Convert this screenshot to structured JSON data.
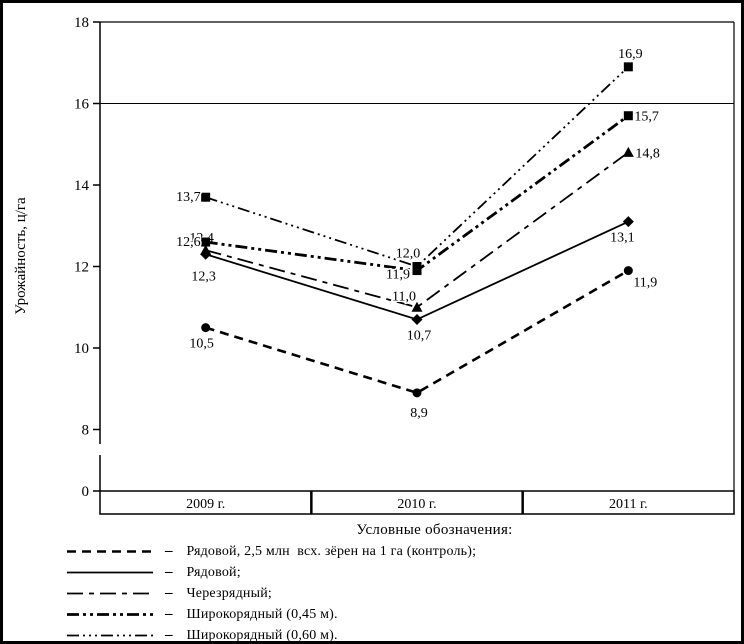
{
  "chart_data": {
    "type": "line",
    "title": "",
    "xlabel": "",
    "ylabel": "Урожайность, ц/га",
    "categories": [
      "2009 г.",
      "2010 г.",
      "2011 г."
    ],
    "yticks": [
      18,
      16,
      14,
      12,
      10,
      8,
      0
    ],
    "grid_values": [
      16
    ],
    "ylim": [
      0,
      18
    ],
    "axis_break": "between 0 and 8",
    "legend_title": "Условные обозначения:",
    "legend_separator": "–",
    "series": [
      {
        "name": "Рядовой, 2,5 млн  всх. зёрен на 1 га (контроль);",
        "marker": "circle",
        "line_style": "dashed",
        "values": [
          10.5,
          8.9,
          11.9
        ],
        "point_labels": [
          {
            "text": "10,5",
            "anchor": "middle",
            "dx": -4,
            "dy": 20
          },
          {
            "text": "8,9",
            "anchor": "middle",
            "dx": 2,
            "dy": 24
          },
          {
            "text": "11,9",
            "anchor": "start",
            "dx": 5,
            "dy": 16
          }
        ]
      },
      {
        "name": "Рядовой;",
        "marker": "diamond",
        "line_style": "solid",
        "values": [
          12.3,
          10.7,
          13.1
        ],
        "point_labels": [
          {
            "text": "12,3",
            "anchor": "middle",
            "dx": -2,
            "dy": 26
          },
          {
            "text": "10,7",
            "anchor": "middle",
            "dx": 2,
            "dy": 20
          },
          {
            "text": "13,1",
            "anchor": "middle",
            "dx": -6,
            "dy": 20
          }
        ]
      },
      {
        "name": "Черезрядный;",
        "marker": "triangle",
        "line_style": "dash-dot",
        "values": [
          12.4,
          11.0,
          14.8
        ],
        "point_labels": [
          {
            "text": "12,4",
            "anchor": "middle",
            "dx": -4,
            "dy": -8
          },
          {
            "text": "11,0",
            "anchor": "middle",
            "dx": -13,
            "dy": -7
          },
          {
            "text": "14,8",
            "anchor": "start",
            "dx": 7,
            "dy": 5
          }
        ]
      },
      {
        "name": "Широкорядный (0,45 м).",
        "marker": "square",
        "line_style": "dash-dot-dot",
        "values": [
          12.6,
          11.9,
          15.7
        ],
        "point_labels": [
          {
            "text": "12,6",
            "anchor": "end",
            "dx": -5,
            "dy": 4
          },
          {
            "text": "11,9",
            "anchor": "end",
            "dx": -7,
            "dy": 8
          },
          {
            "text": "15,7",
            "anchor": "start",
            "dx": 6,
            "dy": 5
          }
        ]
      },
      {
        "name": "Широкорядный (0,60 м).",
        "marker": "square",
        "line_style": "dash-dot-dot-dot",
        "values": [
          13.7,
          12.0,
          16.9
        ],
        "point_labels": [
          {
            "text": "13,7",
            "anchor": "end",
            "dx": -5,
            "dy": 4
          },
          {
            "text": "12,0",
            "anchor": "middle",
            "dx": -9,
            "dy": -9
          },
          {
            "text": "16,9",
            "anchor": "middle",
            "dx": 2,
            "dy": -9
          }
        ]
      }
    ]
  }
}
